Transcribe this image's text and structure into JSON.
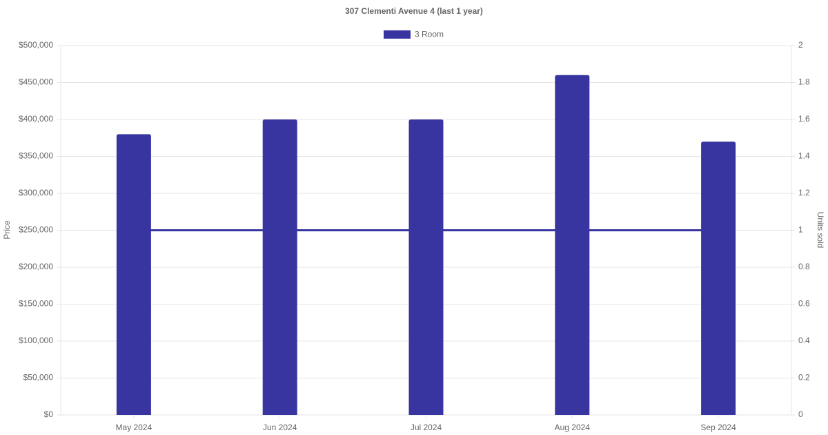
{
  "chart_data": {
    "type": "bar-line",
    "title": "307 Clementi Avenue 4 (last 1 year)",
    "y_label": "Price",
    "y2_label": "Units sold",
    "categories": [
      "May 2024",
      "Jun 2024",
      "Jul 2024",
      "Aug 2024",
      "Sep 2024"
    ],
    "series": [
      {
        "name": "3 Room",
        "type": "bar",
        "color": "#3834a0",
        "values": [
          380000,
          400000,
          400000,
          460000,
          370000
        ]
      },
      {
        "type": "line",
        "axis": "y2",
        "color": "#3834a0",
        "values": [
          1,
          1,
          1,
          1,
          1
        ]
      }
    ],
    "ylim": [
      0,
      500000
    ],
    "yticks": [
      {
        "value": 0,
        "label": "$0"
      },
      {
        "value": 50000,
        "label": "$50,000"
      },
      {
        "value": 100000,
        "label": "$100,000"
      },
      {
        "value": 150000,
        "label": "$150,000"
      },
      {
        "value": 200000,
        "label": "$200,000"
      },
      {
        "value": 250000,
        "label": "$250,000"
      },
      {
        "value": 300000,
        "label": "$300,000"
      },
      {
        "value": 350000,
        "label": "$350,000"
      },
      {
        "value": 400000,
        "label": "$400,000"
      },
      {
        "value": 450000,
        "label": "$450,000"
      },
      {
        "value": 500000,
        "label": "$500,000"
      }
    ],
    "y2lim": [
      0,
      2
    ],
    "y2ticks": [
      0,
      0.2,
      0.4,
      0.6,
      0.8,
      1,
      1.2,
      1.4,
      1.6,
      1.8,
      2
    ],
    "grid": true,
    "legend": "top"
  }
}
